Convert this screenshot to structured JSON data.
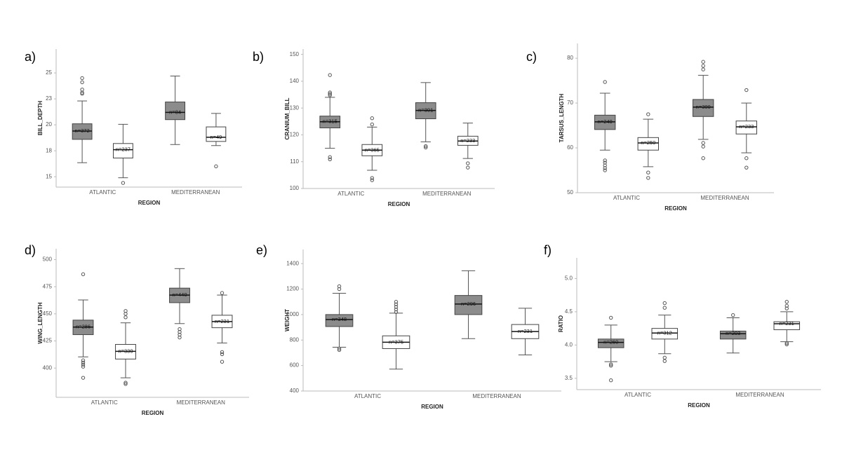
{
  "chart_data": [
    {
      "type": "box",
      "panel_label": "a)",
      "y_label": "BILL_DEPTH",
      "x_label": "REGION",
      "categories": [
        "ATLANTIC",
        "MEDITERRANEAN"
      ],
      "ylim": [
        14,
        27.3
      ],
      "yticks": [
        15,
        {
          "value": 17.5,
          "label": "18"
        },
        20,
        {
          "value": 22.5,
          "label": "23"
        },
        25
      ],
      "series": [
        {
          "color": "#8c8c8c",
          "boxes": [
            {
              "whislo": 16.35,
              "q1": 18.6,
              "med": 19.4,
              "q3": 20.1,
              "whishi": 22.3,
              "fliers": [
                24.5,
                24.1,
                23.4,
                23.1,
                23.0
              ],
              "n_label": "n=372"
            },
            {
              "whislo": 18.1,
              "q1": 20.5,
              "med": 21.2,
              "q3": 22.2,
              "whishi": 24.7,
              "fliers": [],
              "n_label": "n=84"
            }
          ]
        },
        {
          "color": "#ffffff",
          "boxes": [
            {
              "whislo": 14.9,
              "q1": 16.8,
              "med": 17.6,
              "q3": 18.2,
              "whishi": 20.05,
              "fliers": [
                14.4
              ],
              "n_label": "n=237"
            },
            {
              "whislo": 18.0,
              "q1": 18.4,
              "med": 18.8,
              "q3": 19.8,
              "whishi": 21.1,
              "fliers": [
                16.0
              ],
              "n_label": "n=49"
            }
          ]
        }
      ]
    },
    {
      "type": "box",
      "panel_label": "b)",
      "y_label": "CRANIUM_BILL",
      "x_label": "REGION",
      "categories": [
        "ATLANTIC",
        "MEDITERRANEAN"
      ],
      "ylim": [
        100,
        152
      ],
      "yticks": [
        100,
        110,
        120,
        130,
        140,
        150
      ],
      "series": [
        {
          "color": "#8c8c8c",
          "boxes": [
            {
              "whislo": 115,
              "q1": 122.6,
              "med": 124.9,
              "q3": 127,
              "whishi": 134,
              "fliers": [
                142.3,
                135.8,
                135.3,
                134.8,
                111.7,
                110.9
              ],
              "n_label": "n=315"
            },
            {
              "whislo": 117.4,
              "q1": 126,
              "med": 129.1,
              "q3": 132,
              "whishi": 139.5,
              "fliers": [
                115.8,
                115.3
              ],
              "n_label": "n=301"
            }
          ]
        },
        {
          "color": "#ffffff",
          "boxes": [
            {
              "whislo": 106.8,
              "q1": 112.2,
              "med": 114.3,
              "q3": 116.4,
              "whishi": 122.9,
              "fliers": [
                126.2,
                123.9,
                103.9,
                103.1
              ],
              "n_label": "n=365"
            },
            {
              "whislo": 111.2,
              "q1": 116.1,
              "med": 117.7,
              "q3": 119.5,
              "whishi": 124.4,
              "fliers": [
                109.4,
                107.8
              ],
              "n_label": "n=233"
            }
          ]
        }
      ]
    },
    {
      "type": "box",
      "panel_label": "c)",
      "y_label": "TARSUS_LENGTH",
      "x_label": "REGION",
      "categories": [
        "ATLANTIC",
        "MEDITERRANEAN"
      ],
      "ylim": [
        50,
        83.3
      ],
      "yticks": [
        50,
        60,
        70,
        80
      ],
      "series": [
        {
          "color": "#8c8c8c",
          "boxes": [
            {
              "whislo": 59.5,
              "q1": 64.1,
              "med": 65.8,
              "q3": 67.3,
              "whishi": 72.2,
              "fliers": [
                74.7,
                57.2,
                56.7,
                56.1,
                55.5,
                55.0
              ],
              "n_label": "n=240"
            },
            {
              "whislo": 61.9,
              "q1": 67,
              "med": 69.1,
              "q3": 70.8,
              "whishi": 76.2,
              "fliers": [
                79.2,
                78.3,
                77.5,
                61.1,
                60.3,
                57.7
              ],
              "n_label": "n=300"
            }
          ]
        },
        {
          "color": "#ffffff",
          "boxes": [
            {
              "whislo": 55.8,
              "q1": 59.5,
              "med": 61.1,
              "q3": 62.3,
              "whishi": 66.4,
              "fliers": [
                67.5,
                54.5,
                53.3
              ],
              "n_label": "n=250"
            },
            {
              "whislo": 58.9,
              "q1": 63.1,
              "med": 64.7,
              "q3": 66,
              "whishi": 70,
              "fliers": [
                72.9,
                57.7,
                55.6
              ],
              "n_label": "n=233"
            }
          ]
        }
      ]
    },
    {
      "type": "box",
      "panel_label": "d)",
      "y_label": "WING_LENGTH",
      "x_label": "REGION",
      "categories": [
        "ATLANTIC",
        "MEDITERRANEAN"
      ],
      "ylim": [
        373,
        510
      ],
      "yticks": [
        400,
        425,
        450,
        475,
        500
      ],
      "series": [
        {
          "color": "#8c8c8c",
          "boxes": [
            {
              "whislo": 410.3,
              "q1": 430.8,
              "med": 437.8,
              "q3": 444.2,
              "whishi": 462.8,
              "fliers": [
                486.5,
                407.1,
                405.1,
                403.2,
                401.3,
                391
              ],
              "n_label": "n=286"
            },
            {
              "whislo": 441,
              "q1": 460.3,
              "med": 467.3,
              "q3": 473.7,
              "whishi": 491.7,
              "fliers": [
                435.9,
                433.3,
                430.8,
                428.2
              ],
              "n_label": "n=440"
            }
          ]
        },
        {
          "color": "#ffffff",
          "boxes": [
            {
              "whislo": 391,
              "q1": 408.3,
              "med": 415.4,
              "q3": 421.8,
              "whishi": 441.7,
              "fliers": [
                452.6,
                450,
                446.8,
                386.5,
                385.3
              ],
              "n_label": "n=330"
            },
            {
              "whislo": 423.1,
              "q1": 437.2,
              "med": 442.9,
              "q3": 448.7,
              "whishi": 467.3,
              "fliers": [
                469.2,
                414.7,
                412.8,
                405.8
              ],
              "n_label": "n=231"
            }
          ]
        }
      ]
    },
    {
      "type": "box",
      "panel_label": "e)",
      "y_label": "WEIGHT",
      "x_label": "REGION",
      "categories": [
        "ATLANTIC",
        "MEDITERRANEAN"
      ],
      "ylim": [
        400,
        1511
      ],
      "yticks": [
        400,
        600,
        800,
        1000,
        1200,
        1400
      ],
      "series": [
        {
          "color": "#8c8c8c",
          "boxes": [
            {
              "whislo": 744,
              "q1": 906,
              "med": 961,
              "q3": 1000,
              "whishi": 1167,
              "fliers": [
                1222,
                1200,
                733,
                722
              ],
              "n_label": "n=348"
            },
            {
              "whislo": 811,
              "q1": 1000,
              "med": 1083,
              "q3": 1150,
              "whishi": 1344,
              "fliers": [],
              "n_label": "n=296"
            }
          ]
        },
        {
          "color": "#ffffff",
          "boxes": [
            {
              "whislo": 572,
              "q1": 733,
              "med": 783,
              "q3": 833,
              "whishi": 1011,
              "fliers": [
                1100,
                1080,
                1060,
                1040,
                1020
              ],
              "n_label": "n=375"
            },
            {
              "whislo": 683,
              "q1": 811,
              "med": 867,
              "q3": 922,
              "whishi": 1050,
              "fliers": [],
              "n_label": "n=231"
            }
          ]
        }
      ]
    },
    {
      "type": "box",
      "panel_label": "f)",
      "y_label": "RATIO",
      "x_label": "REGION",
      "categories": [
        "ATLANTIC",
        "MEDITERRANEAN"
      ],
      "ylim": [
        3.33,
        5.31
      ],
      "yticks": [
        3.5,
        {
          "value": 4.0,
          "label": "4.0"
        },
        4.5,
        {
          "value": 5.0,
          "label": "5.0"
        }
      ],
      "series": [
        {
          "color": "#8c8c8c",
          "boxes": [
            {
              "whislo": 3.75,
              "q1": 3.96,
              "med": 4.04,
              "q3": 4.09,
              "whishi": 4.3,
              "fliers": [
                4.41,
                3.71,
                3.69,
                3.47
              ],
              "n_label": "n=260"
            },
            {
              "whislo": 3.88,
              "q1": 4.09,
              "med": 4.17,
              "q3": 4.21,
              "whishi": 4.41,
              "fliers": [
                4.45
              ],
              "n_label": "n=203"
            }
          ]
        },
        {
          "color": "#ffffff",
          "boxes": [
            {
              "whislo": 3.87,
              "q1": 4.09,
              "med": 4.18,
              "q3": 4.25,
              "whishi": 4.45,
              "fliers": [
                4.63,
                4.56,
                3.81,
                3.76
              ],
              "n_label": "n=312"
            },
            {
              "whislo": 4.05,
              "q1": 4.23,
              "med": 4.32,
              "q3": 4.35,
              "whishi": 4.5,
              "fliers": [
                4.65,
                4.59,
                4.55,
                4.03,
                4.01
              ],
              "n_label": "n=231"
            }
          ]
        }
      ]
    }
  ]
}
